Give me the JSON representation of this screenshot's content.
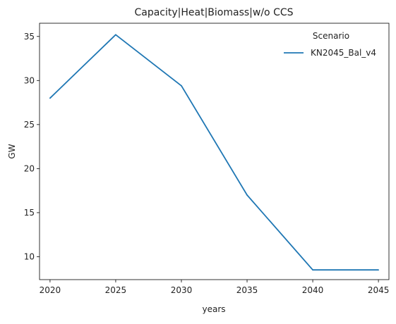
{
  "chart_data": {
    "type": "line",
    "title": "Capacity|Heat|Biomass|w/o CCS",
    "xlabel": "years",
    "ylabel": "GW",
    "x": [
      2020,
      2025,
      2030,
      2035,
      2040,
      2045
    ],
    "xlim": [
      2019.2,
      2045.8
    ],
    "ylim": [
      7.4,
      36.5
    ],
    "xticks": [
      2020,
      2025,
      2030,
      2035,
      2040,
      2045
    ],
    "yticks": [
      10,
      15,
      20,
      25,
      30,
      35
    ],
    "grid": false,
    "legend": {
      "title": "Scenario",
      "placement": "top-right"
    },
    "series": [
      {
        "name": "KN2045_Bal_v4",
        "color": "#1f77b4",
        "values": [
          28.0,
          35.2,
          29.4,
          17.0,
          8.5,
          8.5
        ]
      }
    ]
  }
}
